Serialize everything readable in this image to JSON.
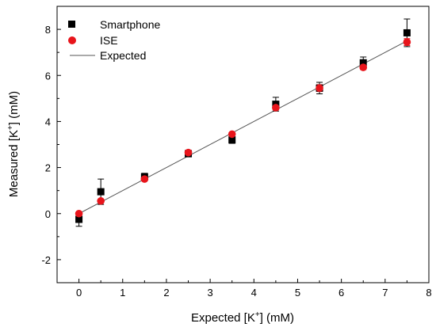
{
  "chart_data": {
    "type": "scatter",
    "xlabel": {
      "main": "Expected [K",
      "sup": "+",
      "rest": "] (mM)"
    },
    "ylabel": {
      "main": "Measured [K",
      "sup": "+",
      "rest": "] (mM)"
    },
    "xlim": [
      -0.5,
      8
    ],
    "ylim": [
      -3,
      9
    ],
    "xticks": [
      "0",
      "1",
      "2",
      "3",
      "4",
      "5",
      "6",
      "7",
      "8"
    ],
    "yticks": [
      "-2",
      "0",
      "2",
      "4",
      "6",
      "8"
    ],
    "xtick_values": [
      0,
      1,
      2,
      3,
      4,
      5,
      6,
      7,
      8
    ],
    "ytick_values": [
      -2,
      0,
      2,
      4,
      6,
      8
    ],
    "grid": false,
    "legend_position": "top-left",
    "series": [
      {
        "name": "Smartphone",
        "marker": "square",
        "color": "#000000",
        "x": [
          0,
          0.5,
          1.5,
          2.5,
          3.5,
          4.5,
          5.5,
          6.5,
          7.5
        ],
        "y": [
          -0.25,
          0.95,
          1.6,
          2.6,
          3.2,
          4.75,
          5.45,
          6.55,
          7.85
        ],
        "error": [
          0.3,
          0.55,
          0.15,
          0.1,
          0.15,
          0.3,
          0.25,
          0.25,
          0.6
        ]
      },
      {
        "name": "ISE",
        "marker": "circle",
        "color": "#e8141b",
        "x": [
          0,
          0.5,
          1.5,
          2.5,
          3.5,
          4.5,
          5.5,
          6.5,
          7.5
        ],
        "y": [
          0.0,
          0.55,
          1.5,
          2.65,
          3.45,
          4.6,
          5.45,
          6.35,
          7.45
        ],
        "error": [
          0.05,
          0.05,
          0.05,
          0.1,
          0.05,
          0.1,
          0.15,
          0.1,
          0.15
        ]
      },
      {
        "name": "Expected",
        "marker": "line",
        "color": "#555555",
        "x": [
          0,
          7.5
        ],
        "y": [
          0,
          7.5
        ]
      }
    ]
  }
}
